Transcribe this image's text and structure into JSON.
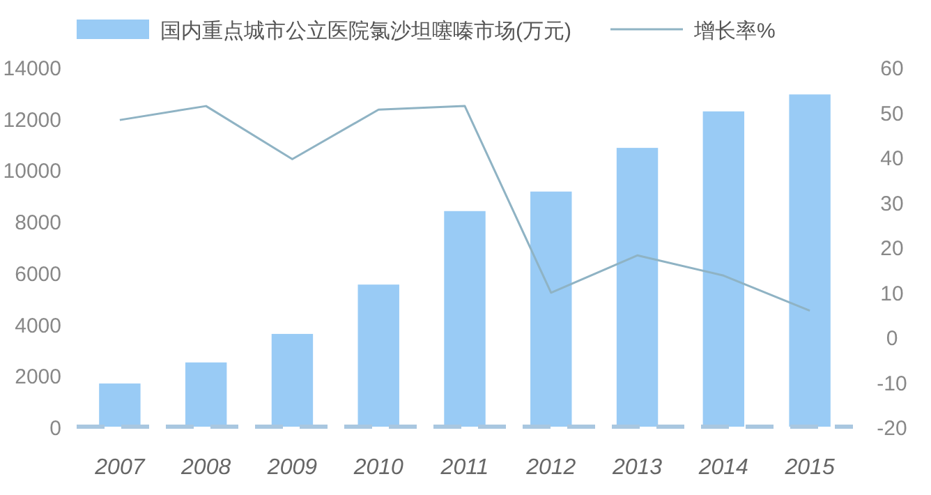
{
  "chart_data": {
    "type": "bar",
    "categories": [
      "2007",
      "2008",
      "2009",
      "2010",
      "2011",
      "2012",
      "2013",
      "2014",
      "2015"
    ],
    "series": [
      {
        "name": "国内重点城市公立医院氯沙坦噻嗪市场(万元)",
        "color": "#99cbf5",
        "values": [
          1680,
          2500,
          3610,
          5530,
          8390,
          9150,
          10850,
          12270,
          12930
        ]
      },
      {
        "name": "增长率%",
        "color": "#8fb3c4",
        "type": "line",
        "axis": "y2",
        "values": [
          48.2,
          51.3,
          39.5,
          50.5,
          51.3,
          9.8,
          18.1,
          13.6,
          5.8
        ]
      }
    ],
    "ylim": [
      0,
      14000
    ],
    "yticks": [
      0,
      2000,
      4000,
      6000,
      8000,
      10000,
      12000,
      14000
    ],
    "y2lim": [
      -20,
      60
    ],
    "y2ticks": [
      -20,
      -10,
      0,
      10,
      20,
      30,
      40,
      50,
      60
    ],
    "legend": "top",
    "grid": false,
    "marker": "none",
    "line_style": "solid"
  }
}
